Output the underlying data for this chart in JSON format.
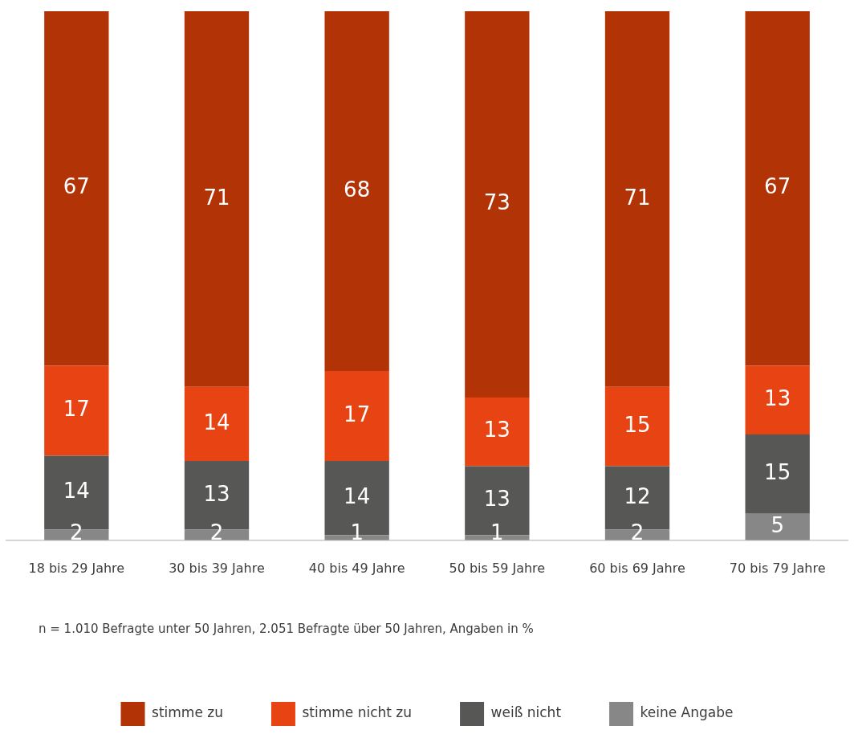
{
  "chart_data": {
    "type": "bar",
    "stacked": true,
    "categories": [
      "18 bis 29 Jahre",
      "30 bis 39 Jahre",
      "40 bis 49 Jahre",
      "50 bis 59 Jahre",
      "60 bis 69 Jahre",
      "70 bis 79 Jahre"
    ],
    "series": [
      {
        "name": "keine Angabe",
        "color": "#878787",
        "values": [
          2,
          2,
          1,
          1,
          2,
          5
        ]
      },
      {
        "name": "weiß nicht",
        "color": "#575756",
        "values": [
          14,
          13,
          14,
          13,
          12,
          15
        ]
      },
      {
        "name": "stimme nicht zu",
        "color": "#e84312",
        "values": [
          17,
          14,
          17,
          13,
          15,
          13
        ]
      },
      {
        "name": "stimme zu",
        "color": "#b23305",
        "values": [
          67,
          71,
          68,
          73,
          71,
          67
        ]
      }
    ],
    "ylim": [
      0,
      100
    ],
    "tick_labels": "x",
    "grid": false,
    "legend": "bottom",
    "data_labels": true,
    "annotations": [
      "n = 1.010 Befragte unter 50 Jahren, 2.051 Befragte über 50 Jahren, Angaben in %"
    ]
  }
}
